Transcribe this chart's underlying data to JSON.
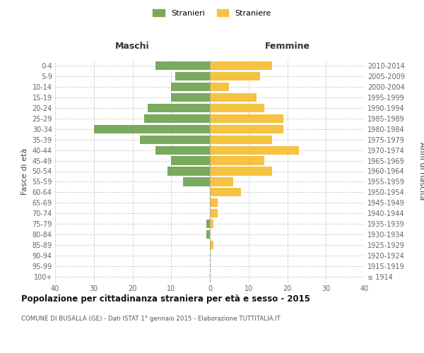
{
  "age_groups": [
    "100+",
    "95-99",
    "90-94",
    "85-89",
    "80-84",
    "75-79",
    "70-74",
    "65-69",
    "60-64",
    "55-59",
    "50-54",
    "45-49",
    "40-44",
    "35-39",
    "30-34",
    "25-29",
    "20-24",
    "15-19",
    "10-14",
    "5-9",
    "0-4"
  ],
  "birth_years": [
    "≤ 1914",
    "1915-1919",
    "1920-1924",
    "1925-1929",
    "1930-1934",
    "1935-1939",
    "1940-1944",
    "1945-1949",
    "1950-1954",
    "1955-1959",
    "1960-1964",
    "1965-1969",
    "1970-1974",
    "1975-1979",
    "1980-1984",
    "1985-1989",
    "1990-1994",
    "1995-1999",
    "2000-2004",
    "2005-2009",
    "2010-2014"
  ],
  "males": [
    0,
    0,
    0,
    0,
    1,
    1,
    0,
    0,
    0,
    7,
    11,
    10,
    14,
    18,
    30,
    17,
    16,
    10,
    10,
    9,
    14
  ],
  "females": [
    0,
    0,
    0,
    1,
    0,
    1,
    2,
    2,
    8,
    6,
    16,
    14,
    23,
    16,
    19,
    19,
    14,
    12,
    5,
    13,
    16
  ],
  "male_color": "#7aaa5e",
  "female_color": "#f5c242",
  "grid_color": "#cccccc",
  "center_line_color": "#aaaaaa",
  "title": "Popolazione per cittadinanza straniera per età e sesso - 2015",
  "subtitle": "COMUNE DI BUSALLA (GE) - Dati ISTAT 1° gennaio 2015 - Elaborazione TUTTITALIA.IT",
  "header_left": "Maschi",
  "header_right": "Femmine",
  "ylabel_left": "Fasce di età",
  "ylabel_right": "Anni di nascita",
  "legend_males": "Stranieri",
  "legend_females": "Straniere",
  "xlim": 40,
  "bar_height": 0.82
}
